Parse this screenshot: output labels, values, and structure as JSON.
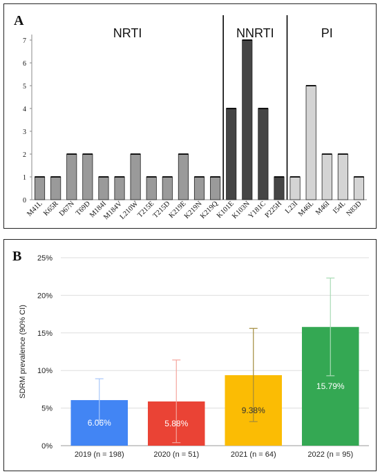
{
  "chart_data": [
    {
      "type": "bar",
      "panel_label": "A",
      "groups": [
        {
          "name": "NRTI",
          "color": "#9a9a9a",
          "categories": [
            "M41L",
            "K65R",
            "D67N",
            "T69D",
            "M184I",
            "M184V",
            "L210W",
            "T215E",
            "T215D",
            "K219E",
            "K219N",
            "K219Q"
          ],
          "values": [
            1,
            1,
            2,
            2,
            1,
            1,
            2,
            1,
            1,
            2,
            1,
            1
          ]
        },
        {
          "name": "NNRTI",
          "color": "#454545",
          "categories": [
            "K101E",
            "K103N",
            "Y181C",
            "P225H"
          ],
          "values": [
            4,
            7,
            4,
            1
          ]
        },
        {
          "name": "PI",
          "color": "#d4d4d4",
          "categories": [
            "L23I",
            "M46L",
            "M46I",
            "I54L",
            "N83D"
          ],
          "values": [
            1,
            5,
            2,
            2,
            1
          ]
        }
      ],
      "yticks": [
        "0",
        "1",
        "2",
        "3",
        "4",
        "5",
        "6",
        "7"
      ],
      "ylim": [
        0,
        7
      ],
      "grid": false
    },
    {
      "type": "bar",
      "panel_label": "B",
      "categories": [
        "2019 (n = 198)",
        "2020 (n = 51)",
        "2021 (n = 64)",
        "2022 (n = 95)"
      ],
      "values": [
        6.06,
        5.88,
        9.38,
        15.79
      ],
      "value_labels": [
        "6.06%",
        "5.88%",
        "9.38%",
        "15.79%"
      ],
      "ci_low": [
        3.4,
        0.4,
        3.2,
        9.3
      ],
      "ci_high": [
        8.9,
        11.4,
        15.6,
        22.3
      ],
      "colors": [
        "#4285f4",
        "#ea4335",
        "#fbbc04",
        "#34a853"
      ],
      "value_label_colors": [
        "#ffffff",
        "#ffffff",
        "#333333",
        "#ffffff"
      ],
      "ylabel": "SDRM prevalence (90% CI)",
      "yticks": [
        "0%",
        "5%",
        "10%",
        "15%",
        "20%",
        "25%"
      ],
      "ylim": [
        0,
        25
      ],
      "grid": true
    }
  ]
}
